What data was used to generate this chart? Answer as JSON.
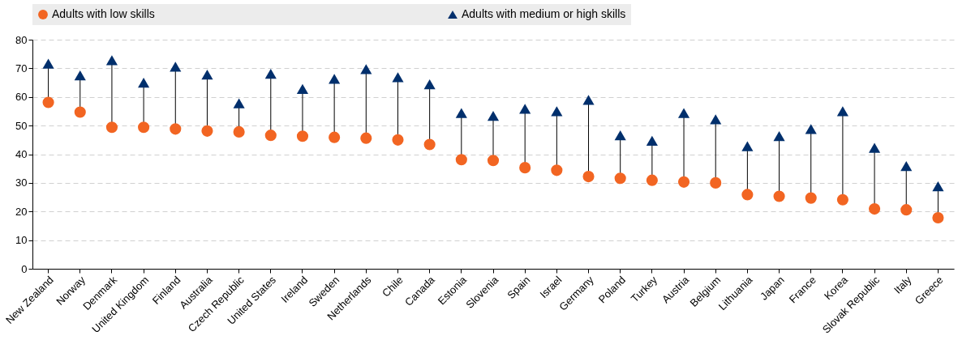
{
  "chart_data": {
    "type": "scatter",
    "categories": [
      "New Zealand",
      "Norway",
      "Denmark",
      "United Kingdom",
      "Finland",
      "Australia",
      "Czech Republic",
      "United States",
      "Ireland",
      "Sweden",
      "Netherlands",
      "Chile",
      "Canada",
      "Estonia",
      "Slovenia",
      "Spain",
      "Israel",
      "Germany",
      "Poland",
      "Turkey",
      "Austria",
      "Belgium",
      "Lithuania",
      "Japan",
      "France",
      "Korea",
      "Slovak Republic",
      "Italy",
      "Greece"
    ],
    "series": [
      {
        "name": "Adults with low skills",
        "color": "#f26522",
        "marker": "circle",
        "values": [
          58.1,
          54.7,
          49.4,
          49.4,
          48.8,
          48.1,
          47.8,
          46.6,
          46.3,
          45.9,
          45.6,
          45.0,
          43.4,
          38.1,
          37.8,
          35.3,
          34.4,
          32.2,
          31.6,
          30.9,
          30.3,
          30.0,
          25.9,
          25.3,
          24.7,
          24.1,
          20.9,
          20.6,
          17.8
        ]
      },
      {
        "name": "Adults with medium or high skills",
        "color": "#002f6c",
        "marker": "triangle",
        "values": [
          71.6,
          67.5,
          72.8,
          65.0,
          70.6,
          67.8,
          57.8,
          68.1,
          62.8,
          66.3,
          69.7,
          66.9,
          64.4,
          54.4,
          53.4,
          55.9,
          55.0,
          59.0,
          46.6,
          44.7,
          54.4,
          52.2,
          42.8,
          46.3,
          48.8,
          55.0,
          42.2,
          35.9,
          28.8
        ]
      }
    ],
    "ylim": [
      0,
      80
    ],
    "yticks": [
      0,
      10,
      20,
      30,
      40,
      50,
      60,
      70,
      80
    ],
    "grid": "y",
    "legend": "top"
  }
}
